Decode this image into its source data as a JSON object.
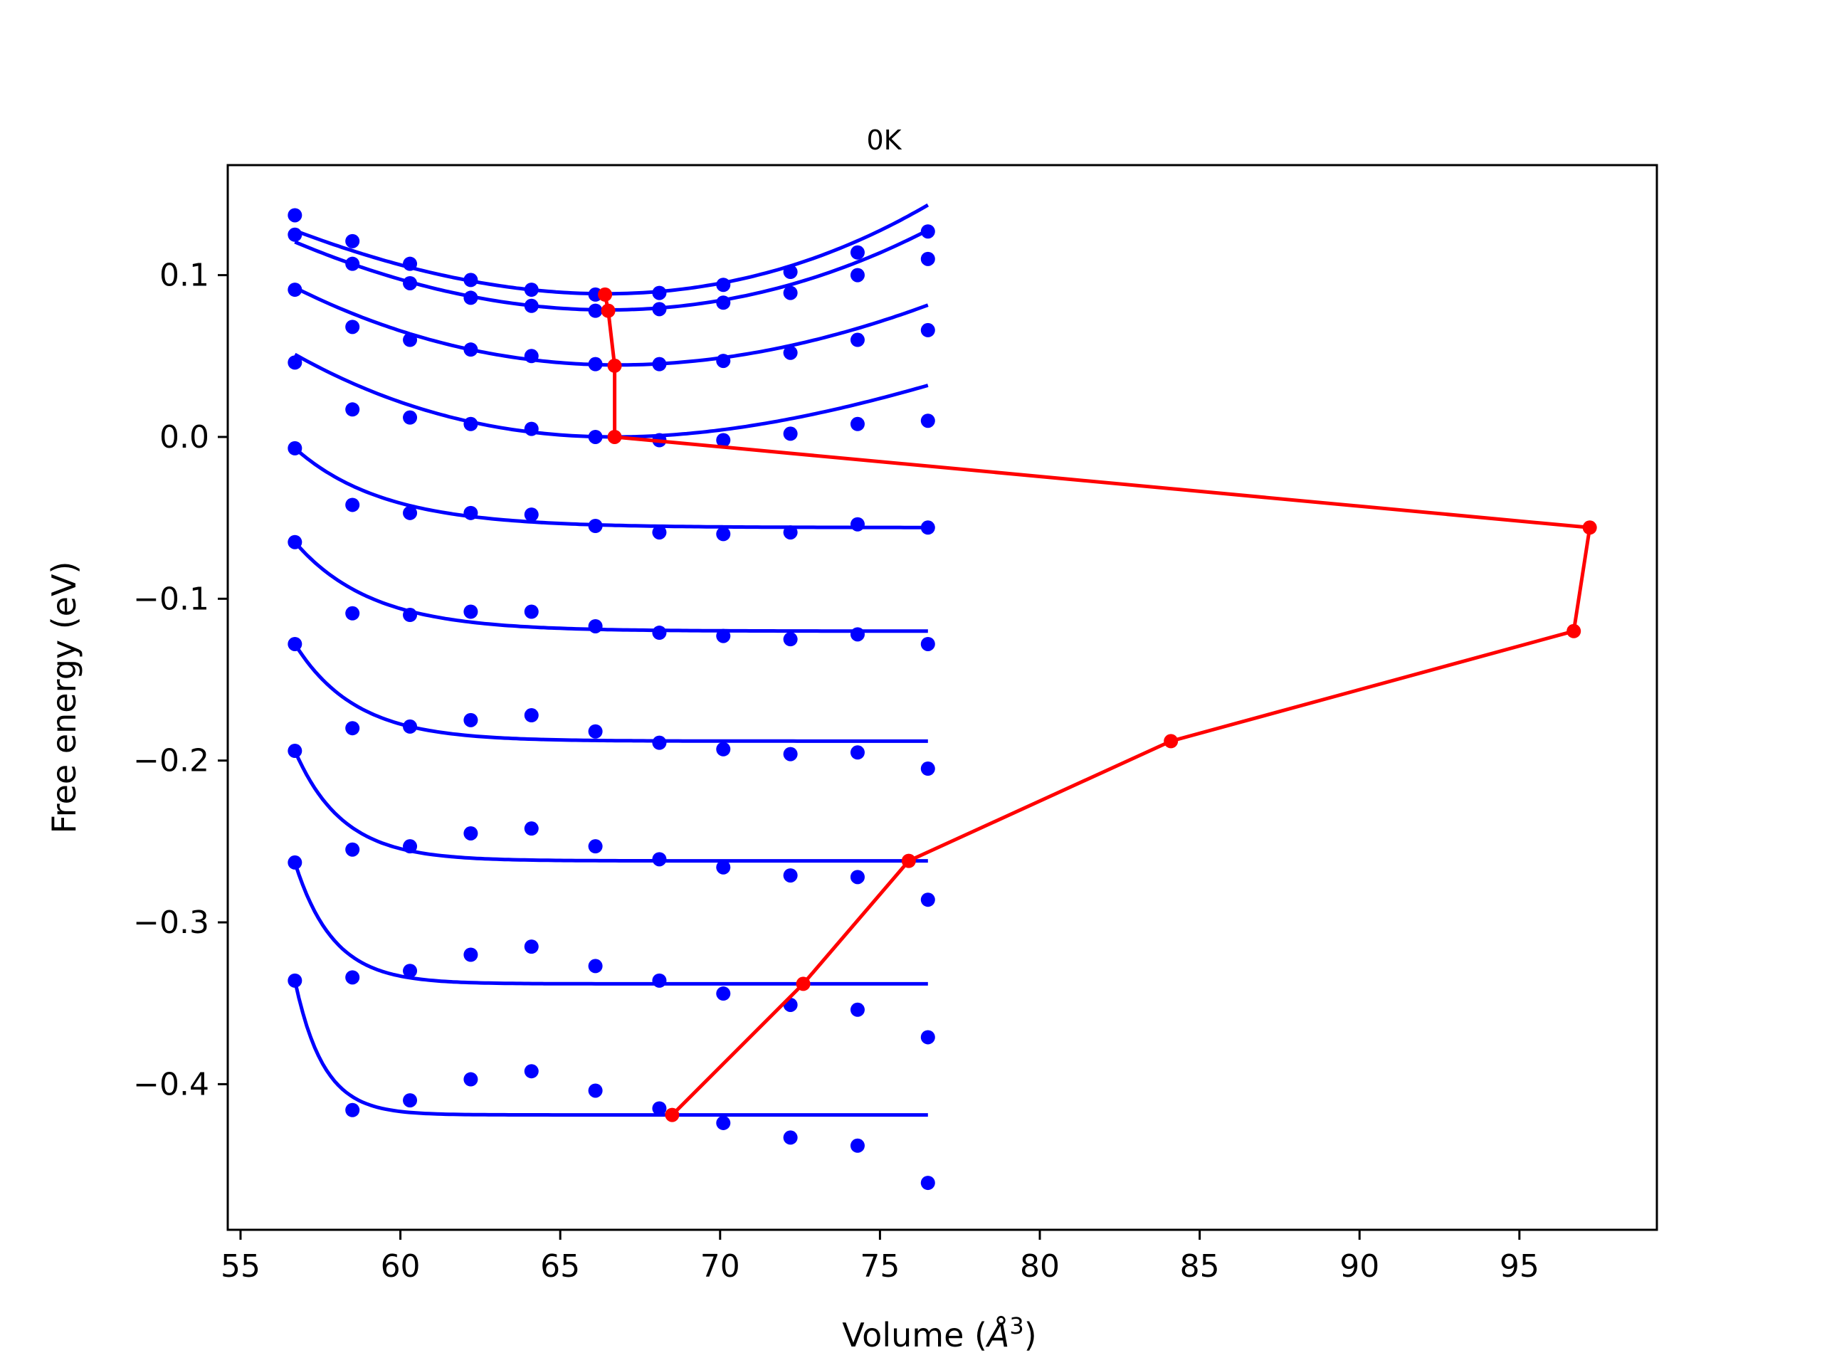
{
  "chart_data": {
    "type": "line",
    "title": "0K",
    "xlabel": "Volume (",
    "xlabel_symbol": "Å",
    "xlabel_exp": "3",
    "xlabel_close": ")",
    "ylabel": "Free energy (eV)",
    "xlim": [
      54.6,
      99.3
    ],
    "ylim": [
      -0.49,
      0.168
    ],
    "xticks": [
      55,
      60,
      65,
      70,
      75,
      80,
      85,
      90,
      95
    ],
    "yticks": [
      0.1,
      0.0,
      -0.1,
      -0.2,
      -0.3,
      -0.4
    ],
    "ytick_labels": [
      "0.1",
      "0.0",
      "−0.1",
      "−0.2",
      "−0.3",
      "−0.4"
    ],
    "grid": false,
    "colors": {
      "data": "#0000ff",
      "fit": "#0000ff",
      "minima": "#ff0000",
      "frame": "#000000"
    },
    "volumes": [
      56.7,
      58.5,
      60.3,
      62.2,
      64.1,
      66.1,
      68.1,
      70.1,
      72.2,
      74.3,
      76.5
    ],
    "fit_x_range": [
      56.7,
      76.5
    ],
    "series": [
      {
        "values": [
          0.137,
          0.121,
          0.107,
          0.097,
          0.091,
          0.088,
          0.089,
          0.094,
          0.102,
          0.114,
          0.127
        ],
        "fit": {
          "kind": "poly",
          "v0": 66.4,
          "e0": 0.0885,
          "b": 0.000475,
          "c": 6.2e-06
        }
      },
      {
        "values": [
          0.125,
          0.107,
          0.095,
          0.086,
          0.081,
          0.078,
          0.079,
          0.083,
          0.089,
          0.1,
          0.11
        ],
        "fit": {
          "kind": "poly",
          "v0": 66.5,
          "e0": 0.0785,
          "b": 0.000465,
          "c": 2.8e-06
        }
      },
      {
        "values": [
          0.091,
          0.068,
          0.06,
          0.054,
          0.05,
          0.045,
          0.045,
          0.047,
          0.052,
          0.06,
          0.066
        ],
        "fit": {
          "kind": "poly",
          "v0": 66.8,
          "e0": 0.0445,
          "b": 0.00043,
          "c": -3.8e-06
        }
      },
      {
        "values": [
          0.046,
          0.017,
          0.012,
          0.008,
          0.005,
          0.0,
          -0.002,
          -0.002,
          0.002,
          0.008,
          0.01
        ],
        "fit": {
          "kind": "poly",
          "v0": 66.7,
          "e0": 0.0,
          "b": 0.00042,
          "c": -9e-06
        }
      },
      {
        "values": [
          -0.007,
          -0.042,
          -0.047,
          -0.047,
          -0.048,
          -0.055,
          -0.059,
          -0.06,
          -0.059,
          -0.054,
          -0.056
        ],
        "fit": {
          "kind": "exp",
          "e0": -0.056,
          "a": 0.049,
          "tau": 2.8
        }
      },
      {
        "values": [
          -0.065,
          -0.109,
          -0.11,
          -0.108,
          -0.108,
          -0.117,
          -0.121,
          -0.123,
          -0.125,
          -0.122,
          -0.128
        ],
        "fit": {
          "kind": "exp",
          "e0": -0.12,
          "a": 0.055,
          "tau": 2.4
        }
      },
      {
        "values": [
          -0.128,
          -0.18,
          -0.179,
          -0.175,
          -0.172,
          -0.182,
          -0.189,
          -0.193,
          -0.196,
          -0.195,
          -0.205
        ],
        "fit": {
          "kind": "exp",
          "e0": -0.188,
          "a": 0.06,
          "tau": 1.9
        }
      },
      {
        "values": [
          -0.194,
          -0.255,
          -0.253,
          -0.245,
          -0.242,
          -0.253,
          -0.261,
          -0.266,
          -0.271,
          -0.272,
          -0.286
        ],
        "fit": {
          "kind": "exp",
          "e0": -0.262,
          "a": 0.068,
          "tau": 1.5
        }
      },
      {
        "values": [
          -0.263,
          -0.334,
          -0.33,
          -0.32,
          -0.315,
          -0.327,
          -0.336,
          -0.344,
          -0.351,
          -0.354,
          -0.371
        ],
        "fit": {
          "kind": "exp",
          "e0": -0.338,
          "a": 0.075,
          "tau": 1.2
        }
      },
      {
        "values": [
          -0.336,
          -0.416,
          -0.41,
          -0.397,
          -0.392,
          -0.404,
          -0.415,
          -0.424,
          -0.433,
          -0.438,
          -0.461
        ],
        "fit": {
          "kind": "exp",
          "e0": -0.419,
          "a": 0.083,
          "tau": 0.9
        }
      }
    ],
    "minima": {
      "x": [
        66.4,
        66.5,
        66.7,
        66.7,
        97.2,
        96.7,
        84.1,
        75.9,
        72.6,
        68.5
      ],
      "y": [
        0.088,
        0.078,
        0.044,
        0.0,
        -0.056,
        -0.12,
        -0.188,
        -0.262,
        -0.338,
        -0.419
      ]
    }
  }
}
